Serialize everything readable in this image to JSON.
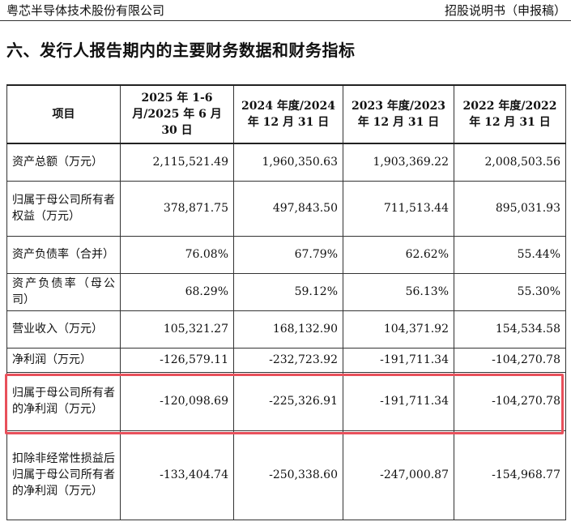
{
  "header": {
    "company": "粤芯半导体技术股份有限公司",
    "doc_type": "招股说明书（申报稿）"
  },
  "section_title": "六、发行人报告期内的主要财务数据和财务指标",
  "table": {
    "columns": [
      "项目",
      "2025 年 1-6 月/2025 年 6 月 30 日",
      "2024 年度/2024 年 12 月 31 日",
      "2023 年度/2023 年 12 月 31 日",
      "2022 年度/2022 年 12 月 31 日"
    ],
    "rows": [
      {
        "label": "资产总额（万元）",
        "values": [
          "2,115,521.49",
          "1,960,350.63",
          "1,903,369.22",
          "2,008,503.56"
        ]
      },
      {
        "label": "归属于母公司所有者权益（万元）",
        "values": [
          "378,871.75",
          "497,843.50",
          "711,513.44",
          "895,031.93"
        ]
      },
      {
        "label": "资产负债率（合并）",
        "values": [
          "76.08%",
          "67.79%",
          "62.62%",
          "55.44%"
        ]
      },
      {
        "label": "资产负债率（母公司）",
        "values": [
          "68.29%",
          "59.12%",
          "56.13%",
          "55.30%"
        ]
      },
      {
        "label": "营业收入（万元）",
        "values": [
          "105,321.27",
          "168,132.90",
          "104,371.92",
          "154,534.58"
        ]
      },
      {
        "label": "净利润（万元）",
        "values": [
          "-126,579.11",
          "-232,723.92",
          "-191,711.34",
          "-104,270.78"
        ]
      },
      {
        "label": "归属于母公司所有者的净利润（万元）",
        "values": [
          "-120,098.69",
          "-225,326.91",
          "-191,711.34",
          "-104,270.78"
        ]
      },
      {
        "label": "扣除非经常性损益后归属于母公司所有者的净利润（万元）",
        "values": [
          "-133,404.74",
          "-250,338.60",
          "-247,000.87",
          "-154,968.77"
        ]
      }
    ]
  },
  "highlight_color": "#e8505b"
}
